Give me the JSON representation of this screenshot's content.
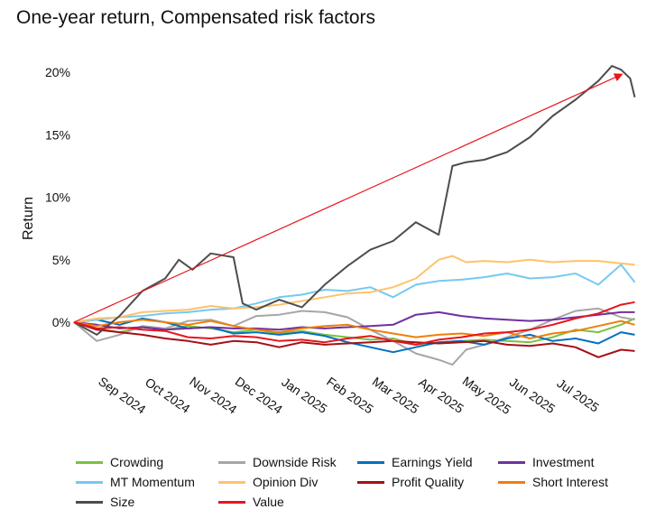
{
  "title": "One-year return, Compensated risk factors",
  "chart_data": {
    "type": "line",
    "title": "One-year return, Compensated risk factors",
    "xlabel": "",
    "ylabel": "Return",
    "ylim": [
      -4,
      21
    ],
    "y_ticks": [
      {
        "value": 0,
        "label": "0%"
      },
      {
        "value": 5,
        "label": "5%"
      },
      {
        "value": 10,
        "label": "10%"
      },
      {
        "value": 15,
        "label": "15%"
      },
      {
        "value": 20,
        "label": "20%"
      }
    ],
    "x_ticks": [
      {
        "month": 1,
        "label": "Sep 2024"
      },
      {
        "month": 2,
        "label": "Oct 2024"
      },
      {
        "month": 3,
        "label": "Nov 2024"
      },
      {
        "month": 4,
        "label": "Dec 2024"
      },
      {
        "month": 5,
        "label": "Jan 2025"
      },
      {
        "month": 6,
        "label": "Feb 2025"
      },
      {
        "month": 7,
        "label": "Mar 2025"
      },
      {
        "month": 8,
        "label": "Apr 2025"
      },
      {
        "month": 9,
        "label": "May 2025"
      },
      {
        "month": 10,
        "label": "Jun 2025"
      },
      {
        "month": 11,
        "label": "Jul 2025"
      }
    ],
    "x_unit": "months from mid-Aug 2024",
    "grid": false,
    "legend_position": "bottom",
    "series": [
      {
        "name": "Crowding",
        "color": "#7ac143",
        "points": [
          [
            0,
            0
          ],
          [
            0.5,
            -0.5
          ],
          [
            1,
            -0.8
          ],
          [
            1.5,
            -0.4
          ],
          [
            2,
            -0.6
          ],
          [
            2.5,
            -0.3
          ],
          [
            3,
            -0.5
          ],
          [
            3.5,
            -0.8
          ],
          [
            4,
            -0.6
          ],
          [
            4.5,
            -0.9
          ],
          [
            5,
            -0.7
          ],
          [
            5.5,
            -1.0
          ],
          [
            6,
            -1.2
          ],
          [
            6.5,
            -1.4
          ],
          [
            7,
            -1.3
          ],
          [
            7.5,
            -1.8
          ],
          [
            8,
            -1.6
          ],
          [
            8.5,
            -1.5
          ],
          [
            9,
            -1.4
          ],
          [
            9.5,
            -1.5
          ],
          [
            10,
            -1.6
          ],
          [
            10.5,
            -1.2
          ],
          [
            11,
            -0.6
          ],
          [
            11.5,
            -0.8
          ],
          [
            12,
            -0.2
          ],
          [
            12.3,
            0.3
          ]
        ]
      },
      {
        "name": "Downside Risk",
        "color": "#a6a6a6",
        "points": [
          [
            0,
            0
          ],
          [
            0.5,
            -1.5
          ],
          [
            1,
            -1.0
          ],
          [
            1.5,
            -0.3
          ],
          [
            2,
            -0.5
          ],
          [
            2.5,
            0.1
          ],
          [
            3,
            0.2
          ],
          [
            3.5,
            -0.3
          ],
          [
            4,
            0.5
          ],
          [
            4.5,
            0.6
          ],
          [
            5,
            0.9
          ],
          [
            5.5,
            0.8
          ],
          [
            6,
            0.4
          ],
          [
            6.5,
            -0.6
          ],
          [
            7,
            -1.5
          ],
          [
            7.5,
            -2.5
          ],
          [
            8,
            -3.0
          ],
          [
            8.3,
            -3.4
          ],
          [
            8.6,
            -2.2
          ],
          [
            9,
            -1.8
          ],
          [
            9.5,
            -1.2
          ],
          [
            10,
            -0.6
          ],
          [
            10.5,
            0.2
          ],
          [
            11,
            0.9
          ],
          [
            11.5,
            1.1
          ],
          [
            12,
            0.4
          ],
          [
            12.3,
            0.2
          ]
        ]
      },
      {
        "name": "Earnings Yield",
        "color": "#0070c0",
        "points": [
          [
            0,
            0
          ],
          [
            0.5,
            0.2
          ],
          [
            1,
            -0.2
          ],
          [
            1.5,
            0.3
          ],
          [
            2,
            0.0
          ],
          [
            2.5,
            -0.5
          ],
          [
            3,
            -0.4
          ],
          [
            3.5,
            -0.9
          ],
          [
            4,
            -0.8
          ],
          [
            4.5,
            -1.0
          ],
          [
            5,
            -0.8
          ],
          [
            5.5,
            -1.1
          ],
          [
            6,
            -1.6
          ],
          [
            6.5,
            -2.0
          ],
          [
            7,
            -2.4
          ],
          [
            7.5,
            -2.0
          ],
          [
            8,
            -1.6
          ],
          [
            8.5,
            -1.5
          ],
          [
            9,
            -1.8
          ],
          [
            9.5,
            -1.3
          ],
          [
            10,
            -1.0
          ],
          [
            10.5,
            -1.5
          ],
          [
            11,
            -1.3
          ],
          [
            11.5,
            -1.7
          ],
          [
            12,
            -0.8
          ],
          [
            12.3,
            -1.0
          ]
        ]
      },
      {
        "name": "Investment",
        "color": "#7030a0",
        "points": [
          [
            0,
            0
          ],
          [
            0.5,
            -0.2
          ],
          [
            1,
            -0.5
          ],
          [
            1.5,
            -0.4
          ],
          [
            2,
            -0.6
          ],
          [
            2.5,
            -0.5
          ],
          [
            3,
            -0.4
          ],
          [
            3.5,
            -0.5
          ],
          [
            4,
            -0.5
          ],
          [
            4.5,
            -0.6
          ],
          [
            5,
            -0.4
          ],
          [
            5.5,
            -0.5
          ],
          [
            6,
            -0.4
          ],
          [
            6.5,
            -0.3
          ],
          [
            7,
            -0.2
          ],
          [
            7.5,
            0.6
          ],
          [
            8,
            0.8
          ],
          [
            8.5,
            0.5
          ],
          [
            9,
            0.3
          ],
          [
            9.5,
            0.2
          ],
          [
            10,
            0.1
          ],
          [
            10.5,
            0.2
          ],
          [
            11,
            0.4
          ],
          [
            11.5,
            0.6
          ],
          [
            12,
            0.8
          ],
          [
            12.3,
            0.8
          ]
        ]
      },
      {
        "name": "MT Momentum",
        "color": "#76c9f0",
        "points": [
          [
            0,
            0
          ],
          [
            0.5,
            0.2
          ],
          [
            1,
            0.4
          ],
          [
            1.5,
            0.5
          ],
          [
            2,
            0.7
          ],
          [
            2.5,
            0.8
          ],
          [
            3,
            1.0
          ],
          [
            3.5,
            1.1
          ],
          [
            4,
            1.5
          ],
          [
            4.5,
            2.0
          ],
          [
            5,
            2.2
          ],
          [
            5.5,
            2.6
          ],
          [
            6,
            2.5
          ],
          [
            6.5,
            2.8
          ],
          [
            7,
            2.0
          ],
          [
            7.5,
            3.0
          ],
          [
            8,
            3.3
          ],
          [
            8.5,
            3.4
          ],
          [
            9,
            3.6
          ],
          [
            9.5,
            3.9
          ],
          [
            10,
            3.5
          ],
          [
            10.5,
            3.6
          ],
          [
            11,
            3.9
          ],
          [
            11.5,
            3.0
          ],
          [
            12,
            4.6
          ],
          [
            12.3,
            3.2
          ]
        ]
      },
      {
        "name": "Opinion Div",
        "color": "#ffc26b",
        "points": [
          [
            0,
            0
          ],
          [
            0.5,
            0.3
          ],
          [
            1,
            0.4
          ],
          [
            1.5,
            0.8
          ],
          [
            2,
            0.9
          ],
          [
            2.5,
            1.0
          ],
          [
            3,
            1.3
          ],
          [
            3.5,
            1.1
          ],
          [
            4,
            1.2
          ],
          [
            4.5,
            1.4
          ],
          [
            5,
            1.7
          ],
          [
            5.5,
            2.0
          ],
          [
            6,
            2.3
          ],
          [
            6.5,
            2.4
          ],
          [
            7,
            2.8
          ],
          [
            7.5,
            3.5
          ],
          [
            8,
            5.0
          ],
          [
            8.3,
            5.3
          ],
          [
            8.6,
            4.8
          ],
          [
            9,
            4.9
          ],
          [
            9.5,
            4.8
          ],
          [
            10,
            5.0
          ],
          [
            10.5,
            4.8
          ],
          [
            11,
            4.9
          ],
          [
            11.5,
            4.9
          ],
          [
            12,
            4.7
          ],
          [
            12.3,
            4.6
          ]
        ]
      },
      {
        "name": "Profit Quality",
        "color": "#a50f15",
        "points": [
          [
            0,
            0
          ],
          [
            0.5,
            -0.6
          ],
          [
            1,
            -0.8
          ],
          [
            1.5,
            -1.0
          ],
          [
            2,
            -1.3
          ],
          [
            2.5,
            -1.5
          ],
          [
            3,
            -1.8
          ],
          [
            3.5,
            -1.5
          ],
          [
            4,
            -1.6
          ],
          [
            4.5,
            -2.0
          ],
          [
            5,
            -1.6
          ],
          [
            5.5,
            -1.8
          ],
          [
            6,
            -1.7
          ],
          [
            6.5,
            -1.6
          ],
          [
            7,
            -1.5
          ],
          [
            7.5,
            -1.6
          ],
          [
            8,
            -1.7
          ],
          [
            8.5,
            -1.6
          ],
          [
            9,
            -1.5
          ],
          [
            9.5,
            -1.8
          ],
          [
            10,
            -1.9
          ],
          [
            10.5,
            -1.7
          ],
          [
            11,
            -2.0
          ],
          [
            11.5,
            -2.8
          ],
          [
            12,
            -2.2
          ],
          [
            12.3,
            -2.3
          ]
        ]
      },
      {
        "name": "Short Interest",
        "color": "#f07f09",
        "points": [
          [
            0,
            0
          ],
          [
            0.5,
            -0.3
          ],
          [
            1,
            0.0
          ],
          [
            1.5,
            0.2
          ],
          [
            2,
            0.0
          ],
          [
            2.5,
            -0.2
          ],
          [
            3,
            0.1
          ],
          [
            3.5,
            -0.3
          ],
          [
            4,
            -0.6
          ],
          [
            4.5,
            -0.8
          ],
          [
            5,
            -0.5
          ],
          [
            5.5,
            -0.3
          ],
          [
            6,
            -0.2
          ],
          [
            6.5,
            -0.6
          ],
          [
            7,
            -0.9
          ],
          [
            7.5,
            -1.2
          ],
          [
            8,
            -1.0
          ],
          [
            8.5,
            -0.9
          ],
          [
            9,
            -1.1
          ],
          [
            9.5,
            -0.8
          ],
          [
            10,
            -1.3
          ],
          [
            10.5,
            -0.9
          ],
          [
            11,
            -0.7
          ],
          [
            11.5,
            -0.3
          ],
          [
            12,
            0.1
          ],
          [
            12.3,
            -0.2
          ]
        ]
      },
      {
        "name": "Size",
        "color": "#4d4d4d",
        "points": [
          [
            0,
            0
          ],
          [
            0.5,
            -1.0
          ],
          [
            1,
            0.5
          ],
          [
            1.5,
            2.5
          ],
          [
            2,
            3.5
          ],
          [
            2.3,
            5.0
          ],
          [
            2.6,
            4.2
          ],
          [
            3,
            5.5
          ],
          [
            3.5,
            5.2
          ],
          [
            3.7,
            1.5
          ],
          [
            4,
            1.0
          ],
          [
            4.5,
            1.8
          ],
          [
            5,
            1.2
          ],
          [
            5.5,
            3.0
          ],
          [
            6,
            4.5
          ],
          [
            6.5,
            5.8
          ],
          [
            7,
            6.5
          ],
          [
            7.5,
            8.0
          ],
          [
            8,
            7.0
          ],
          [
            8.3,
            12.5
          ],
          [
            8.6,
            12.8
          ],
          [
            9,
            13.0
          ],
          [
            9.5,
            13.6
          ],
          [
            10,
            14.8
          ],
          [
            10.5,
            16.5
          ],
          [
            11,
            17.8
          ],
          [
            11.5,
            19.3
          ],
          [
            11.8,
            20.5
          ],
          [
            12,
            20.2
          ],
          [
            12.2,
            19.5
          ],
          [
            12.3,
            18.0
          ]
        ]
      },
      {
        "name": "Value",
        "color": "#e8141d",
        "points": [
          [
            0,
            0
          ],
          [
            0.5,
            -0.5
          ],
          [
            1,
            -0.4
          ],
          [
            1.5,
            -0.6
          ],
          [
            2,
            -0.7
          ],
          [
            2.5,
            -1.2
          ],
          [
            3,
            -1.3
          ],
          [
            3.5,
            -1.1
          ],
          [
            4,
            -1.2
          ],
          [
            4.5,
            -1.5
          ],
          [
            5,
            -1.4
          ],
          [
            5.5,
            -1.6
          ],
          [
            6,
            -1.3
          ],
          [
            6.5,
            -1.1
          ],
          [
            7,
            -1.5
          ],
          [
            7.5,
            -1.8
          ],
          [
            8,
            -1.4
          ],
          [
            8.5,
            -1.2
          ],
          [
            9,
            -0.9
          ],
          [
            9.5,
            -0.8
          ],
          [
            10,
            -0.6
          ],
          [
            10.5,
            -0.2
          ],
          [
            11,
            0.3
          ],
          [
            11.5,
            0.7
          ],
          [
            12,
            1.4
          ],
          [
            12.3,
            1.6
          ]
        ]
      }
    ],
    "annotation": {
      "type": "arrow",
      "color": "#e8141d",
      "from": [
        0,
        0
      ],
      "to": [
        12.0,
        19.8
      ]
    }
  }
}
